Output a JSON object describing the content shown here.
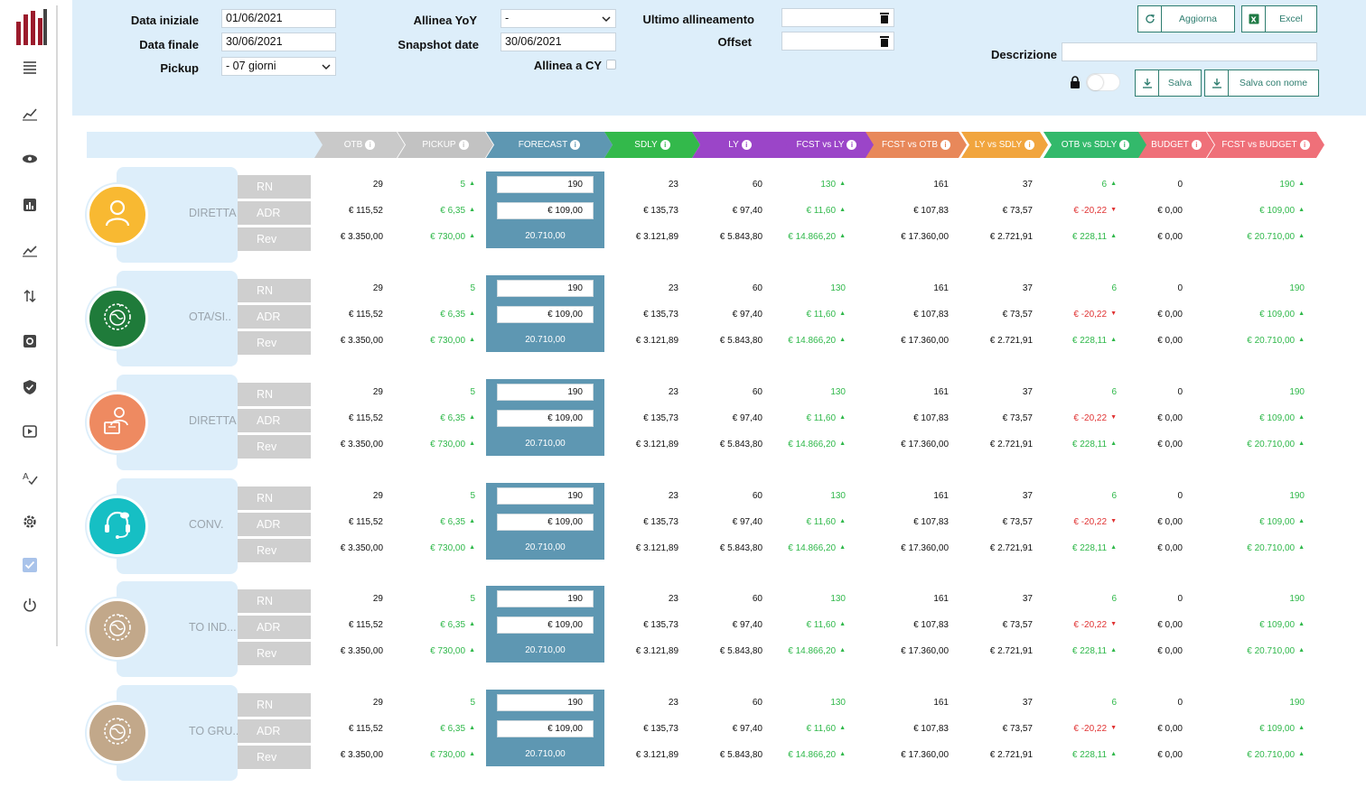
{
  "colors": {
    "otb": "#c9c9c9",
    "pickup": "#c2c2c2",
    "forecast": "#5e97b2",
    "sdly": "#33b94b",
    "ly": "#9b45c8",
    "fcst_vs_ly": "#9b45c8",
    "fcst_vs_otb": "#e8885a",
    "ly_vs_sdly": "#f1a53e",
    "otb_vs_sdly": "#33b96b",
    "budget": "#ef7079",
    "fcst_vs_budget": "#ef7079",
    "green": "#2fb84a",
    "red": "#e03333"
  },
  "header": {
    "data_iniziale_label": "Data iniziale",
    "data_iniziale_value": "01/06/2021",
    "data_finale_label": "Data finale",
    "data_finale_value": "30/06/2021",
    "pickup_label": "Pickup",
    "pickup_value": "- 07 giorni",
    "allinea_yoy_label": "Allinea YoY",
    "allinea_yoy_value": "-",
    "snapshot_label": "Snapshot date",
    "snapshot_value": "30/06/2021",
    "allinea_cy_label": "Allinea a CY",
    "ultimo_label": "Ultimo allineamento",
    "offset_label": "Offset",
    "descrizione_label": "Descrizione",
    "aggiorna_label": "Aggiorna",
    "excel_label": "Excel",
    "salva_label": "Salva",
    "salva_nome_label": "Salva con nome"
  },
  "columns": [
    "OTB",
    "PICKUP",
    "FORECAST",
    "SDLY",
    "LY",
    "FCST vs LY",
    "FCST vs OTB",
    "LY vs SDLY",
    "OTB vs SDLY",
    "BUDGET",
    "FCST vs BUDGET"
  ],
  "row_labels": [
    "RN",
    "ADR",
    "Rev"
  ],
  "segments": [
    {
      "name": "DIRETTA",
      "icon": "user-icon",
      "color": "#f8b932"
    },
    {
      "name": "OTA/SI..",
      "icon": "globe-plane-icon",
      "color": "#1f7b3a"
    },
    {
      "name": "DIRETTA",
      "icon": "agent-icon",
      "color": "#ee8a61"
    },
    {
      "name": "CONV.",
      "icon": "headset-icon",
      "color": "#16bfc4"
    },
    {
      "name": "TO IND...",
      "icon": "globe-plane-icon",
      "color": "#c2a88a"
    },
    {
      "name": "TO GRU...",
      "icon": "globe-plane-icon",
      "color": "#c2a88a"
    }
  ],
  "values": {
    "otb": [
      "29",
      "€ 115,52",
      "€ 3.350,00"
    ],
    "pickup": [
      "5",
      "€ 6,35",
      "€ 730,00"
    ],
    "forecast": [
      "190",
      "€ 109,00",
      "20.710,00"
    ],
    "sdly": [
      "23",
      "€ 135,73",
      "€ 3.121,89"
    ],
    "ly": [
      "60",
      "€ 97,40",
      "€ 5.843,80"
    ],
    "fcst_vs_ly": [
      "130",
      "€ 11,60",
      "€ 14.866,20"
    ],
    "fcst_vs_otb": [
      "161",
      "€ 107,83",
      "€ 17.360,00"
    ],
    "ly_vs_sdly": [
      "37",
      "€ 73,57",
      "€ 2.721,91"
    ],
    "otb_vs_sdly": [
      "6",
      "€ -20,22",
      "€ 228,11"
    ],
    "budget": [
      "0",
      "€ 0,00",
      "€ 0,00"
    ],
    "fcst_vs_budget": [
      "190",
      "€ 109,00",
      "€ 20.710,00"
    ]
  }
}
